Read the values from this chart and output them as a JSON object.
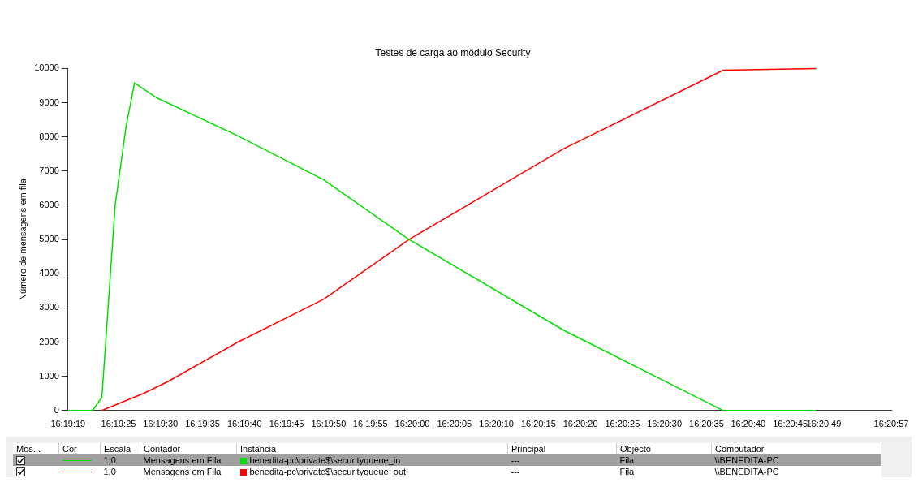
{
  "chart_data": {
    "type": "line",
    "title": "Testes de carga ao módulo Security",
    "ylabel": "Número de mensagens em fila",
    "xlim": [
      16.32194,
      16.34917
    ],
    "xticks": [
      {
        "value": 16.32194,
        "label": "16:19:19"
      },
      {
        "value": 16.32361,
        "label": "16:19:25"
      },
      {
        "value": 16.325,
        "label": "16:19:30"
      },
      {
        "value": 16.32639,
        "label": "16:19:35"
      },
      {
        "value": 16.32778,
        "label": "16:19:40"
      },
      {
        "value": 16.32917,
        "label": "16:19:45"
      },
      {
        "value": 16.33056,
        "label": "16:19:50"
      },
      {
        "value": 16.33194,
        "label": "16:19:55"
      },
      {
        "value": 16.33333,
        "label": "16:20:00"
      },
      {
        "value": 16.33472,
        "label": "16:20:05"
      },
      {
        "value": 16.33611,
        "label": "16:20:10"
      },
      {
        "value": 16.3375,
        "label": "16:20:15"
      },
      {
        "value": 16.33889,
        "label": "16:20:20"
      },
      {
        "value": 16.34028,
        "label": "16:20:25"
      },
      {
        "value": 16.34167,
        "label": "16:20:30"
      },
      {
        "value": 16.34306,
        "label": "16:20:35"
      },
      {
        "value": 16.34444,
        "label": "16:20:40"
      },
      {
        "value": 16.34583,
        "label": "16:20:45"
      },
      {
        "value": 16.34694,
        "label": "16:20:49"
      },
      {
        "value": 16.34917,
        "label": "16:20:57"
      }
    ],
    "ylim": [
      0,
      10000
    ],
    "yticks": [
      0,
      1000,
      2000,
      3000,
      4000,
      5000,
      6000,
      7000,
      8000,
      9000,
      10000
    ],
    "grid": false,
    "legend": "bottom",
    "line_style": "solid",
    "marker": "none",
    "series": [
      {
        "name": "benedita-pc\\private$\\securityqueue_in",
        "color": "#00e000",
        "x": [
          16.32194,
          16.32275,
          16.32306,
          16.3235,
          16.32386,
          16.32414,
          16.32486,
          16.32756,
          16.33039,
          16.33322,
          16.33833,
          16.34361,
          16.34669
        ],
        "values": [
          0,
          0,
          380,
          6000,
          8300,
          9580,
          9150,
          8030,
          6750,
          5000,
          2350,
          0,
          0
        ]
      },
      {
        "name": "benedita-pc\\private$\\securityqueue_out",
        "color": "#ff0000",
        "x": [
          16.32306,
          16.32444,
          16.32525,
          16.32756,
          16.33039,
          16.33322,
          16.33833,
          16.34361,
          16.34669
        ],
        "values": [
          0,
          500,
          850,
          2000,
          3250,
          5000,
          7650,
          9950,
          10000
        ]
      }
    ],
    "annotations": [
      "Mos...",
      "Cor",
      "Escala",
      "Contador",
      "Instância",
      "Principal",
      "Objecto",
      "Computador",
      "1,0",
      "Mensagens em Fila",
      "---",
      "Fila",
      "\\\\BENEDITA-PC",
      "1,0",
      "Mensagens em Fila",
      "---",
      "Fila",
      "\\\\BENEDITA-PC"
    ]
  }
}
